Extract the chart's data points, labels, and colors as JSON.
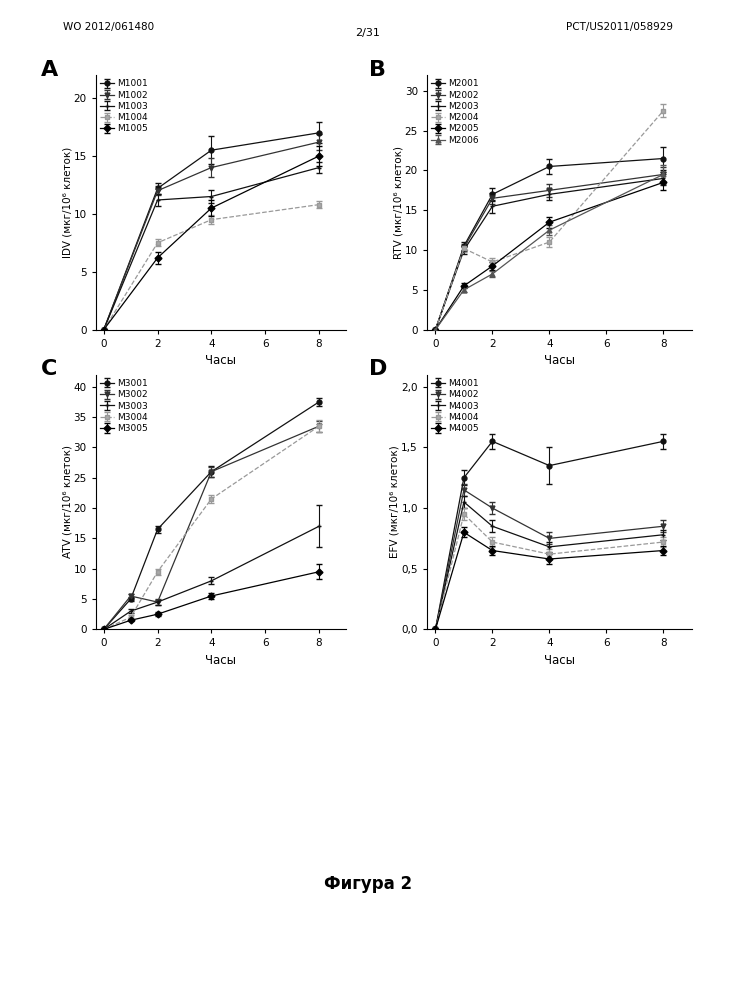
{
  "page_label_left": "WO 2012/061480",
  "page_label_right": "PCT/US2011/058929",
  "page_number": "2/31",
  "figure_label": "Фигура 2",
  "panel_A": {
    "label": "A",
    "xlabel": "Часы",
    "ylabel": "IDV (мкг/10⁶ клеток)",
    "xlim": [
      -0.3,
      9
    ],
    "ylim": [
      0,
      22
    ],
    "xticks": [
      0,
      2,
      4,
      6,
      8
    ],
    "yticks": [
      0,
      5,
      10,
      15,
      20
    ],
    "series": [
      {
        "name": "M1001",
        "x": [
          0,
          2,
          4,
          8
        ],
        "y": [
          0,
          12.2,
          15.5,
          17.0
        ],
        "yerr": [
          0,
          0.5,
          1.2,
          0.9
        ],
        "marker": "o",
        "color": "#111111",
        "linestyle": "-",
        "mfc": "#111111"
      },
      {
        "name": "M1002",
        "x": [
          0,
          2,
          4,
          8
        ],
        "y": [
          0,
          12.0,
          14.0,
          16.2
        ],
        "yerr": [
          0,
          0.4,
          0.8,
          0.7
        ],
        "marker": "v",
        "color": "#333333",
        "linestyle": "-",
        "mfc": "#333333"
      },
      {
        "name": "M1003",
        "x": [
          0,
          2,
          4,
          8
        ],
        "y": [
          0,
          11.2,
          11.5,
          14.0
        ],
        "yerr": [
          0,
          0.5,
          0.6,
          0.5
        ],
        "marker": "+",
        "color": "#111111",
        "linestyle": "-",
        "mfc": "#111111"
      },
      {
        "name": "M1004",
        "x": [
          0,
          2,
          4,
          8
        ],
        "y": [
          0,
          7.5,
          9.5,
          10.8
        ],
        "yerr": [
          0,
          0.3,
          0.4,
          0.3
        ],
        "marker": "s",
        "color": "#999999",
        "linestyle": "--",
        "mfc": "#aaaaaa"
      },
      {
        "name": "M1005",
        "x": [
          0,
          2,
          4,
          8
        ],
        "y": [
          0,
          6.2,
          10.5,
          15.0
        ],
        "yerr": [
          0,
          0.5,
          0.7,
          0.9
        ],
        "marker": "D",
        "color": "#000000",
        "linestyle": "-",
        "mfc": "#000000"
      }
    ]
  },
  "panel_B": {
    "label": "B",
    "xlabel": "Часы",
    "ylabel": "RTV (мкг/10⁶ клеток)",
    "xlim": [
      -0.3,
      9
    ],
    "ylim": [
      0,
      32
    ],
    "xticks": [
      0,
      2,
      4,
      6,
      8
    ],
    "yticks": [
      0,
      5,
      10,
      15,
      20,
      25,
      30
    ],
    "series": [
      {
        "name": "M2001",
        "x": [
          0,
          1,
          2,
          4,
          8
        ],
        "y": [
          0,
          10.5,
          17.0,
          20.5,
          21.5
        ],
        "yerr": [
          0,
          0.5,
          0.8,
          1.0,
          1.5
        ],
        "marker": "o",
        "color": "#111111",
        "linestyle": "-",
        "mfc": "#111111"
      },
      {
        "name": "M2002",
        "x": [
          0,
          1,
          2,
          4,
          8
        ],
        "y": [
          0,
          10.3,
          16.5,
          17.5,
          19.5
        ],
        "yerr": [
          0,
          0.4,
          0.7,
          0.8,
          0.9
        ],
        "marker": "v",
        "color": "#333333",
        "linestyle": "-",
        "mfc": "#333333"
      },
      {
        "name": "M2003",
        "x": [
          0,
          1,
          2,
          4,
          8
        ],
        "y": [
          0,
          10.0,
          15.5,
          17.0,
          19.0
        ],
        "yerr": [
          0,
          0.5,
          0.8,
          0.7,
          0.8
        ],
        "marker": "+",
        "color": "#111111",
        "linestyle": "-",
        "mfc": "#111111"
      },
      {
        "name": "M2004",
        "x": [
          0,
          1,
          2,
          4,
          8
        ],
        "y": [
          0,
          10.2,
          8.5,
          11.0,
          27.5
        ],
        "yerr": [
          0,
          0.4,
          0.5,
          0.6,
          0.8
        ],
        "marker": "s",
        "color": "#999999",
        "linestyle": "--",
        "mfc": "#aaaaaa"
      },
      {
        "name": "M2005",
        "x": [
          0,
          1,
          2,
          4,
          8
        ],
        "y": [
          0,
          5.5,
          8.0,
          13.5,
          18.5
        ],
        "yerr": [
          0,
          0.3,
          0.5,
          0.7,
          1.0
        ],
        "marker": "D",
        "color": "#000000",
        "linestyle": "-",
        "mfc": "#000000"
      },
      {
        "name": "M2006",
        "x": [
          0,
          1,
          2,
          4,
          8
        ],
        "y": [
          0,
          5.0,
          7.0,
          12.5,
          19.5
        ],
        "yerr": [
          0,
          0.3,
          0.4,
          0.6,
          1.2
        ],
        "marker": "^",
        "color": "#555555",
        "linestyle": "-",
        "mfc": "#555555"
      }
    ]
  },
  "panel_C": {
    "label": "C",
    "xlabel": "Часы",
    "ylabel": "ATV (мкг/10⁶ клеток)",
    "xlim": [
      -0.3,
      9
    ],
    "ylim": [
      0,
      42
    ],
    "xticks": [
      0,
      2,
      4,
      6,
      8
    ],
    "yticks": [
      0,
      5,
      10,
      15,
      20,
      25,
      30,
      35,
      40
    ],
    "series": [
      {
        "name": "M3001",
        "x": [
          0,
          1,
          2,
          4,
          8
        ],
        "y": [
          0,
          5.0,
          16.5,
          26.0,
          37.5
        ],
        "yerr": [
          0,
          0.4,
          0.6,
          0.9,
          0.7
        ],
        "marker": "o",
        "color": "#111111",
        "linestyle": "-",
        "mfc": "#111111"
      },
      {
        "name": "M3002",
        "x": [
          0,
          1,
          2,
          4,
          8
        ],
        "y": [
          0,
          5.5,
          4.5,
          26.0,
          33.5
        ],
        "yerr": [
          0,
          0.4,
          0.5,
          0.8,
          0.9
        ],
        "marker": "v",
        "color": "#333333",
        "linestyle": "-",
        "mfc": "#333333"
      },
      {
        "name": "M3003",
        "x": [
          0,
          1,
          2,
          4,
          8
        ],
        "y": [
          0,
          3.0,
          4.5,
          8.0,
          17.0
        ],
        "yerr": [
          0,
          0.3,
          0.4,
          0.6,
          3.5
        ],
        "marker": "+",
        "color": "#111111",
        "linestyle": "-",
        "mfc": "#111111"
      },
      {
        "name": "M3004",
        "x": [
          0,
          1,
          2,
          4,
          8
        ],
        "y": [
          0,
          2.0,
          9.5,
          21.5,
          33.5
        ],
        "yerr": [
          0,
          0.3,
          0.5,
          0.7,
          1.0
        ],
        "marker": "s",
        "color": "#999999",
        "linestyle": "--",
        "mfc": "#aaaaaa"
      },
      {
        "name": "M3005",
        "x": [
          0,
          1,
          2,
          4,
          8
        ],
        "y": [
          0,
          1.5,
          2.5,
          5.5,
          9.5
        ],
        "yerr": [
          0,
          0.2,
          0.3,
          0.5,
          1.2
        ],
        "marker": "D",
        "color": "#000000",
        "linestyle": "-",
        "mfc": "#000000"
      }
    ]
  },
  "panel_D": {
    "label": "D",
    "xlabel": "Часы",
    "ylabel": "EFV (мкг/10⁶ клеток)",
    "xlim": [
      -0.3,
      9
    ],
    "ylim": [
      0,
      2.1
    ],
    "xticks": [
      0,
      2,
      4,
      6,
      8
    ],
    "yticks": [
      0.0,
      0.5,
      1.0,
      1.5,
      2.0
    ],
    "yticklabels": [
      "0,0",
      "0,5",
      "1,0",
      "1,5",
      "2,0"
    ],
    "series": [
      {
        "name": "M4001",
        "x": [
          0,
          1,
          2,
          4,
          8
        ],
        "y": [
          0,
          1.25,
          1.55,
          1.35,
          1.55
        ],
        "yerr": [
          0,
          0.06,
          0.06,
          0.15,
          0.06
        ],
        "marker": "o",
        "color": "#111111",
        "linestyle": "-",
        "mfc": "#111111"
      },
      {
        "name": "M4002",
        "x": [
          0,
          1,
          2,
          4,
          8
        ],
        "y": [
          0,
          1.15,
          1.0,
          0.75,
          0.85
        ],
        "yerr": [
          0,
          0.05,
          0.05,
          0.05,
          0.05
        ],
        "marker": "v",
        "color": "#333333",
        "linestyle": "-",
        "mfc": "#333333"
      },
      {
        "name": "M4003",
        "x": [
          0,
          1,
          2,
          4,
          8
        ],
        "y": [
          0,
          1.05,
          0.85,
          0.68,
          0.78
        ],
        "yerr": [
          0,
          0.05,
          0.05,
          0.04,
          0.04
        ],
        "marker": "+",
        "color": "#111111",
        "linestyle": "-",
        "mfc": "#111111"
      },
      {
        "name": "M4004",
        "x": [
          0,
          1,
          2,
          4,
          8
        ],
        "y": [
          0,
          0.95,
          0.72,
          0.62,
          0.72
        ],
        "yerr": [
          0,
          0.05,
          0.04,
          0.04,
          0.04
        ],
        "marker": "s",
        "color": "#999999",
        "linestyle": "--",
        "mfc": "#aaaaaa"
      },
      {
        "name": "M4005",
        "x": [
          0,
          1,
          2,
          4,
          8
        ],
        "y": [
          0,
          0.8,
          0.65,
          0.58,
          0.65
        ],
        "yerr": [
          0,
          0.04,
          0.04,
          0.04,
          0.04
        ],
        "marker": "D",
        "color": "#000000",
        "linestyle": "-",
        "mfc": "#000000"
      }
    ]
  }
}
